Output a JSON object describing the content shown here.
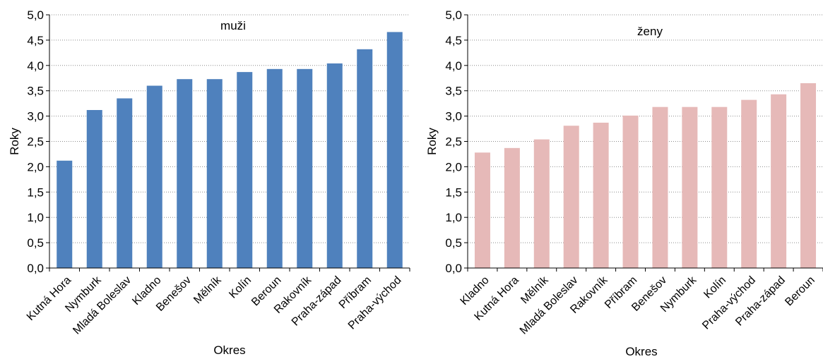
{
  "chart_data": [
    {
      "type": "bar",
      "title": "muži",
      "xlabel": "Okres",
      "ylabel": "Roky",
      "ylim": [
        0,
        5
      ],
      "yticks": [
        "0,0",
        "0,5",
        "1,0",
        "1,5",
        "2,0",
        "2,5",
        "3,0",
        "3,5",
        "4,0",
        "4,5",
        "5,0"
      ],
      "grid": true,
      "color": "#4f81bd",
      "categories": [
        "Kutná Hora",
        "Nymburk",
        "Mladá Boleslav",
        "Kladno",
        "Benešov",
        "Mělník",
        "Kolín",
        "Beroun",
        "Rakovník",
        "Praha-západ",
        "Příbram",
        "Praha-východ"
      ],
      "values": [
        2.12,
        3.12,
        3.35,
        3.6,
        3.73,
        3.73,
        3.87,
        3.93,
        3.93,
        4.04,
        4.32,
        4.66
      ]
    },
    {
      "type": "bar",
      "title": "ženy",
      "xlabel": "Okres",
      "ylabel": "Roky",
      "ylim": [
        0,
        5
      ],
      "yticks": [
        "0,0",
        "0,5",
        "1,0",
        "1,5",
        "2,0",
        "2,5",
        "3,0",
        "3,5",
        "4,0",
        "4,5",
        "5,0"
      ],
      "grid": true,
      "color": "#e6b9b8",
      "categories": [
        "Kladno",
        "Kutná Hora",
        "Mělník",
        "Mladá Boleslav",
        "Rakovník",
        "Příbram",
        "Benešov",
        "Nymburk",
        "Kolín",
        "Praha-východ",
        "Praha-západ",
        "Beroun"
      ],
      "values": [
        2.28,
        2.37,
        2.54,
        2.81,
        2.87,
        3.01,
        3.18,
        3.18,
        3.18,
        3.32,
        3.43,
        3.65
      ]
    }
  ]
}
